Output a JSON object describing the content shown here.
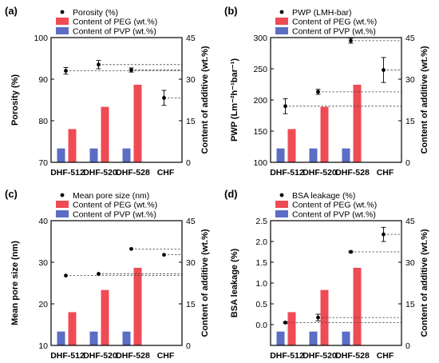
{
  "colors": {
    "peg": "#ef4b55",
    "pvp": "#5b6dc4",
    "point": "#000000"
  },
  "chart_data": [
    {
      "panel": "(a)",
      "type": "bar",
      "categories": [
        "DHF-512",
        "DHF-520",
        "DHF-528",
        "CHF"
      ],
      "left_axis": {
        "label": "Porosity (%)",
        "lim": [
          70,
          100
        ],
        "ticks": [
          70,
          80,
          90,
          100
        ]
      },
      "right_axis": {
        "label": "Content of additive (wt.%)",
        "lim": [
          0,
          45
        ],
        "ticks": [
          0,
          15,
          30,
          45
        ]
      },
      "legend": [
        "Porosity (%)",
        "Content of PEG (wt.%)",
        "Content of PVP (wt.%)"
      ],
      "points": [
        92.0,
        93.5,
        92.2,
        85.5
      ],
      "errors": [
        0.8,
        1.0,
        0.5,
        1.8
      ],
      "peg": [
        12,
        20,
        28,
        0
      ],
      "pvp": [
        5,
        5,
        5,
        0
      ]
    },
    {
      "panel": "(b)",
      "type": "bar",
      "categories": [
        "DHF-512",
        "DHF-520",
        "DHF-528",
        "CHF"
      ],
      "left_axis": {
        "label": "PWP (Lm⁻²h⁻¹bar⁻¹)",
        "lim": [
          100,
          300
        ],
        "ticks": [
          100,
          150,
          200,
          250,
          300
        ]
      },
      "right_axis": {
        "label": "Content of additive (wt.%)",
        "lim": [
          0,
          45
        ],
        "ticks": [
          0,
          15,
          30,
          45
        ]
      },
      "legend": [
        "PWP (LMH-bar)",
        "Content of PEG (wt.%)",
        "Content of PVP (wt.%)"
      ],
      "points": [
        190,
        213,
        295,
        248
      ],
      "errors": [
        12,
        4,
        4,
        20
      ],
      "peg": [
        12,
        20,
        28,
        0
      ],
      "pvp": [
        5,
        5,
        5,
        0
      ]
    },
    {
      "panel": "(c)",
      "type": "bar",
      "categories": [
        "DHF-512",
        "DHF-520",
        "DHF-528",
        "CHF"
      ],
      "left_axis": {
        "label": "Mean pore size (nm)",
        "lim": [
          10,
          40
        ],
        "ticks": [
          10,
          20,
          30,
          40
        ]
      },
      "right_axis": {
        "label": "Content of additive (wt.%)",
        "lim": [
          0,
          45
        ],
        "ticks": [
          0,
          15,
          30,
          45
        ]
      },
      "legend": [
        "Mean pore size (nm)",
        "Content of PEG (wt.%)",
        "Content of PVP (wt.%)"
      ],
      "points": [
        26.8,
        27.2,
        33.2,
        31.8
      ],
      "errors": [
        0,
        0,
        0,
        0
      ],
      "peg": [
        12,
        20,
        28,
        0
      ],
      "pvp": [
        5,
        5,
        5,
        0
      ]
    },
    {
      "panel": "(d)",
      "type": "bar",
      "categories": [
        "DHF-512",
        "DHF-520",
        "DHF-528",
        "CHF"
      ],
      "left_axis": {
        "label": "BSA leakage (%)",
        "lim": [
          -0.5,
          2.5
        ],
        "ticks": [
          0.0,
          0.5,
          1.0,
          1.5,
          2.0,
          2.5
        ]
      },
      "right_axis": {
        "label": "Content of additive (wt.%)",
        "lim": [
          0,
          45
        ],
        "ticks": [
          0,
          15,
          30,
          45
        ]
      },
      "legend": [
        "BSA leakage (%)",
        "Content of PEG (wt.%)",
        "Content of PVP (wt.%)"
      ],
      "points": [
        0.05,
        0.17,
        1.75,
        2.17
      ],
      "errors": [
        0.02,
        0.08,
        0.02,
        0.17
      ],
      "peg": [
        12,
        20,
        28,
        0
      ],
      "pvp": [
        5,
        5,
        5,
        0
      ]
    }
  ]
}
